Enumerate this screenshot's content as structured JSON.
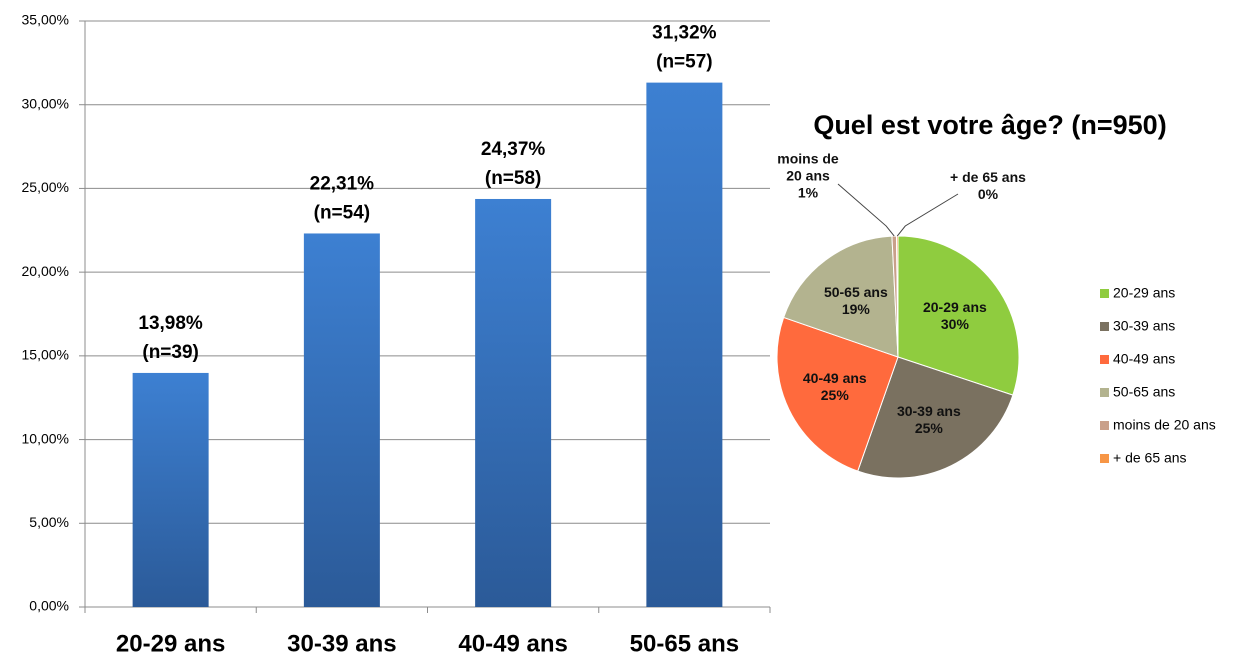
{
  "chart_data": [
    {
      "type": "bar",
      "categories": [
        "20-29 ans",
        "30-39 ans",
        "40-49 ans",
        "50-65 ans"
      ],
      "values": [
        13.98,
        22.31,
        24.37,
        31.32
      ],
      "value_labels": [
        "13,98%",
        "22,31%",
        "24,37%",
        "31,32%"
      ],
      "n_labels": [
        "(n=39)",
        "(n=54)",
        "(n=58)",
        "(n=57)"
      ],
      "color": "#3a78c9",
      "ylim": [
        0,
        35
      ],
      "yticks": [
        {
          "value": 0,
          "label": "0,00%"
        },
        {
          "value": 5,
          "label": "5,00%"
        },
        {
          "value": 10,
          "label": "10,00%"
        },
        {
          "value": 15,
          "label": "15,00%"
        },
        {
          "value": 20,
          "label": "20,00%"
        },
        {
          "value": 25,
          "label": "25,00%"
        },
        {
          "value": 30,
          "label": "30,00%"
        },
        {
          "value": 35,
          "label": "35,00%"
        }
      ],
      "grid": true
    },
    {
      "type": "pie",
      "title": "Quel est votre âge? (n=950)",
      "categories": [
        "20-29 ans",
        "30-39 ans",
        "40-49 ans",
        "50-65 ans",
        "moins de 20 ans",
        "+ de 65 ans"
      ],
      "values": [
        30.1,
        25.3,
        24.9,
        18.9,
        0.6,
        0.2
      ],
      "value_labels": [
        "30%",
        "25%",
        "25%",
        "19%",
        "1%",
        "0%"
      ],
      "colors": [
        "#8fcc3f",
        "#7a7160",
        "#ff6a3d",
        "#b3b38f",
        "#c9a08a",
        "#f79646"
      ],
      "legend": "right"
    }
  ]
}
